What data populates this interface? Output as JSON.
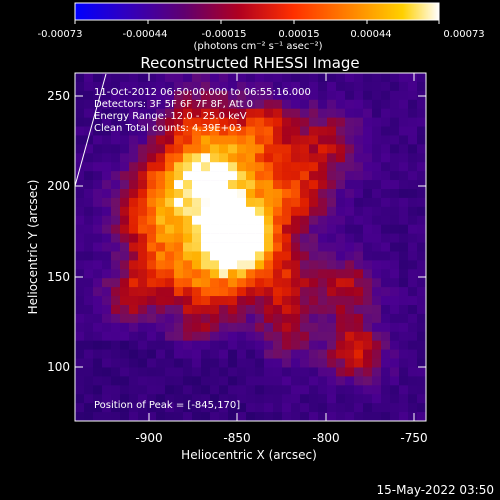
{
  "colorbar": {
    "ticks": [
      "-0.00073",
      "-0.00044",
      "-0.00015",
      "0.00015",
      "0.00044",
      "0.00073"
    ],
    "units": "(photons cm⁻² s⁻¹ asec⁻²)",
    "stops": [
      "#0000ff",
      "#3000c0",
      "#600070",
      "#b00020",
      "#ff3000",
      "#ff9000",
      "#ffd000",
      "#ffffff"
    ]
  },
  "title": "Reconstructed RHESSI Image",
  "info": {
    "time_range": "11-Oct-2012 06:50:00.000 to 06:55:16.000",
    "detectors": "Detectors: 3F 5F 6F 7F 8F, Att 0",
    "energy_range": "Energy Range: 12.0 - 25.0 keV",
    "clean": "Clean     Total counts: 4.39E+03",
    "peak": "Position of Peak = [-845,170]"
  },
  "axes": {
    "xlabel": "Heliocentric X (arcsec)",
    "ylabel": "Heliocentric Y (arcsec)",
    "xticks": [
      "-900",
      "-850",
      "-800",
      "-750"
    ],
    "yticks": [
      "250",
      "200",
      "150",
      "100"
    ],
    "xlim": [
      -945,
      -748
    ],
    "ylim": [
      70,
      263
    ]
  },
  "footer": {
    "date": "15-May-2022 03:50"
  }
}
